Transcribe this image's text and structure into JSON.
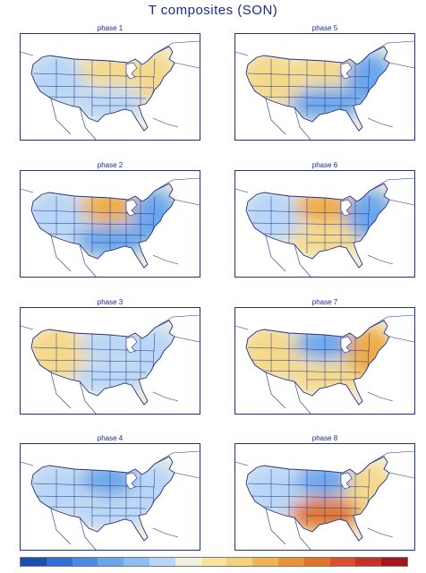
{
  "title": "T composites (SON)",
  "colors": {
    "cold_strong": "#2f6fd6",
    "cold": "#6aa6ec",
    "cool": "#b8d6f7",
    "neutral": "#f2f0dc",
    "warm": "#f5d98a",
    "hot": "#eeaa45",
    "hot_strong": "#e0752a",
    "outline": "#22308a"
  },
  "colorbar": {
    "colors": [
      "#1d4fb0",
      "#2f6fd6",
      "#4b8ae3",
      "#6aa6ec",
      "#8fbdf2",
      "#b8d6f7",
      "#f2f0dc",
      "#f7e3a0",
      "#f5d27a",
      "#eeb355",
      "#e8923a",
      "#e0752a",
      "#d9502a",
      "#c9302a",
      "#a8141e"
    ],
    "labels": [
      "",
      "",
      "",
      "",
      "",
      "",
      "",
      "",
      "",
      "",
      "",
      "",
      "",
      "",
      "",
      ""
    ]
  },
  "panels": [
    {
      "title": "phase 1",
      "pattern": {
        "west": "cool",
        "north": "warm",
        "east": "warm",
        "south": "cool"
      }
    },
    {
      "title": "phase 5",
      "pattern": {
        "west": "warm",
        "north": "warm",
        "east": "cold",
        "south": "cold"
      }
    },
    {
      "title": "phase 2",
      "pattern": {
        "west": "cool",
        "north": "hot",
        "east": "cold",
        "south": "cold"
      }
    },
    {
      "title": "phase 6",
      "pattern": {
        "west": "cool",
        "north": "hot",
        "east": "cold",
        "south": "warm"
      }
    },
    {
      "title": "phase 3",
      "pattern": {
        "west": "warm",
        "north": "cool",
        "east": "cool",
        "south": "cool"
      }
    },
    {
      "title": "phase 7",
      "pattern": {
        "west": "warm",
        "north": "cold",
        "east": "hot",
        "south": "warm"
      }
    },
    {
      "title": "phase 4",
      "pattern": {
        "west": "cool",
        "north": "cold",
        "east": "cool",
        "south": "cool"
      }
    },
    {
      "title": "phase 8",
      "pattern": {
        "west": "cool",
        "north": "cold",
        "east": "warm",
        "south": "hot_strong"
      }
    }
  ]
}
